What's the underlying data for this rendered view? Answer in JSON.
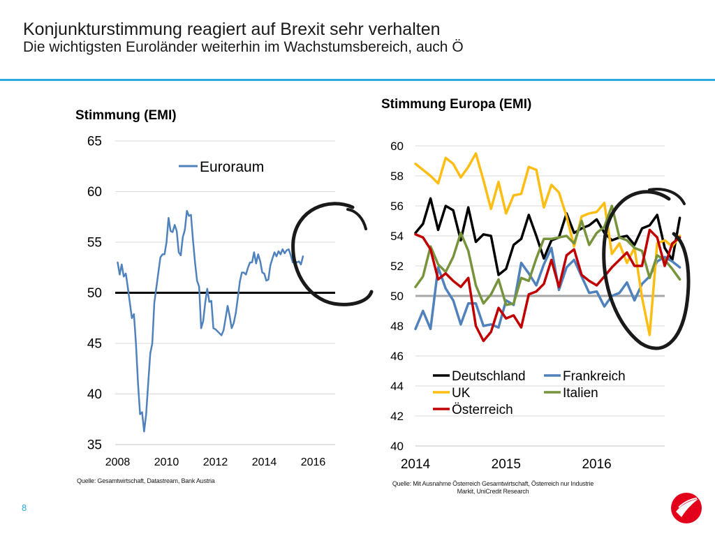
{
  "slide": {
    "title": "Konjunkturstimmung reagiert auf Brexit sehr verhalten",
    "subtitle": "Die wichtigsten Euroländer weiterhin im Wachstumsbereich, auch Ö",
    "page_number": "8",
    "accent_color": "#29a9e0"
  },
  "sources": {
    "left": "Quelle: Gesamtwirtschaft, Datastream, Bank Austria",
    "right_line1": "Quelle: Mit Ausnahme Österreich Gesamtwirtschaft, Österreich nur Industrie",
    "right_line2": "Markit, UniCredit Research"
  },
  "chart_data": [
    {
      "type": "line",
      "title": "Stimmung (EMI)",
      "xlabel": "",
      "ylabel": "",
      "ylim": [
        35,
        65
      ],
      "xlim": [
        2007.9,
        2016.9
      ],
      "yticks": [
        "35",
        "40",
        "45",
        "50",
        "55",
        "60",
        "65"
      ],
      "xticks": [
        "2008",
        "2010",
        "2012",
        "2014",
        "2016"
      ],
      "grid": true,
      "legend": "top-center",
      "reference_line": 50,
      "series": [
        {
          "name": "Euroraum",
          "color": "#4f81bd",
          "values": [
            53.0,
            51.8,
            52.8,
            51.6,
            51.9,
            50.5,
            49.0,
            47.5,
            47.9,
            45.0,
            41.0,
            38.0,
            38.2,
            36.3,
            38.0,
            41.0,
            44.0,
            45.0,
            49.0,
            50.5,
            52.0,
            53.5,
            53.8,
            53.8,
            55.0,
            57.4,
            56.1,
            56.0,
            56.7,
            56.1,
            54.0,
            53.7,
            55.5,
            56.2,
            58.1,
            57.6,
            57.7,
            55.2,
            53.0,
            51.2,
            50.6,
            46.5,
            47.2,
            49.0,
            50.4,
            49.1,
            49.2,
            46.5,
            46.4,
            46.2,
            46.0,
            45.8,
            46.3,
            47.5,
            48.7,
            47.7,
            46.5,
            47.0,
            48.0,
            49.5,
            51.1,
            52.0,
            52.0,
            51.8,
            52.5,
            53.0,
            53.0,
            54.0,
            52.9,
            53.8,
            53.1,
            52.0,
            51.9,
            51.2,
            51.3,
            52.7,
            53.4,
            54.0,
            53.6,
            54.1,
            53.8,
            54.3,
            53.9,
            54.2,
            54.3,
            53.7,
            53.0,
            53.1,
            53.0,
            53.1,
            52.8,
            53.6
          ],
          "note": "monthly, Jan 2008 – Sep 2016 (approx.)"
        }
      ]
    },
    {
      "type": "line",
      "title": "Stimmung Europa (EMI)",
      "xlabel": "",
      "ylabel": "",
      "ylim": [
        40,
        60
      ],
      "xlim": [
        2014.0,
        2016.75
      ],
      "yticks": [
        "40",
        "42",
        "44",
        "46",
        "48",
        "50",
        "52",
        "54",
        "56",
        "58",
        "60"
      ],
      "xticks": [
        "2014",
        "2015",
        "2016"
      ],
      "grid": true,
      "legend": "bottom-left",
      "reference_line": 50,
      "series": [
        {
          "name": "Deutschland",
          "color": "#000000",
          "values": [
            54.2,
            54.8,
            56.5,
            54.4,
            56.0,
            55.7,
            53.7,
            55.9,
            53.6,
            54.1,
            54.0,
            51.4,
            51.8,
            53.4,
            53.8,
            55.4,
            54.0,
            52.5,
            53.7,
            53.9,
            55.5,
            54.2,
            54.5,
            54.7,
            55.1,
            54.2,
            53.7,
            53.9,
            54.0,
            53.4,
            54.5,
            54.7,
            55.4,
            53.2,
            52.4,
            55.2
          ]
        },
        {
          "name": "Frankreich",
          "color": "#4f81bd",
          "values": [
            47.8,
            49.0,
            47.8,
            51.9,
            50.5,
            49.7,
            48.1,
            49.5,
            49.5,
            48.0,
            48.1,
            47.9,
            49.7,
            49.4,
            52.2,
            51.5,
            50.7,
            52.1,
            53.2,
            50.4,
            51.9,
            52.4,
            51.3,
            50.2,
            50.3,
            49.3,
            50.0,
            50.2,
            50.9,
            49.7,
            50.8,
            51.3,
            52.3,
            52.6,
            52.3,
            51.9
          ]
        },
        {
          "name": "UK",
          "color": "#fdbd12",
          "values": [
            58.8,
            58.4,
            58.0,
            57.5,
            59.2,
            58.8,
            57.9,
            58.6,
            59.5,
            57.7,
            55.8,
            57.6,
            55.5,
            56.7,
            56.8,
            58.6,
            58.4,
            55.9,
            57.4,
            56.9,
            55.3,
            53.3,
            55.3,
            55.5,
            55.6,
            56.2,
            52.8,
            53.5,
            52.2,
            53.2,
            49.9,
            47.4,
            53.5,
            53.7,
            53.3,
            54.0
          ]
        },
        {
          "name": "Italien",
          "color": "#77933c",
          "values": [
            50.6,
            51.3,
            53.3,
            52.1,
            51.6,
            52.6,
            54.2,
            53.0,
            50.7,
            49.5,
            50.1,
            51.1,
            49.4,
            49.5,
            51.2,
            51.0,
            52.5,
            53.8,
            53.8,
            53.9,
            54.0,
            53.5,
            55.0,
            53.4,
            54.2,
            54.6,
            56.0,
            53.9,
            53.7,
            53.2,
            53.0,
            51.2,
            52.7,
            52.4,
            51.8,
            51.1
          ]
        },
        {
          "name": "Österreich",
          "color": "#c00000",
          "values": [
            54.1,
            53.9,
            53.1,
            51.1,
            51.5,
            51.0,
            50.6,
            51.2,
            48.0,
            47.0,
            47.6,
            49.2,
            48.5,
            48.7,
            47.9,
            50.1,
            50.3,
            50.8,
            52.4,
            50.6,
            52.7,
            53.1,
            51.4,
            51.0,
            50.7,
            51.3,
            51.9,
            52.4,
            52.9,
            52.0,
            52.0,
            54.4,
            53.9,
            52.0,
            53.5,
            53.9
          ]
        }
      ]
    }
  ]
}
